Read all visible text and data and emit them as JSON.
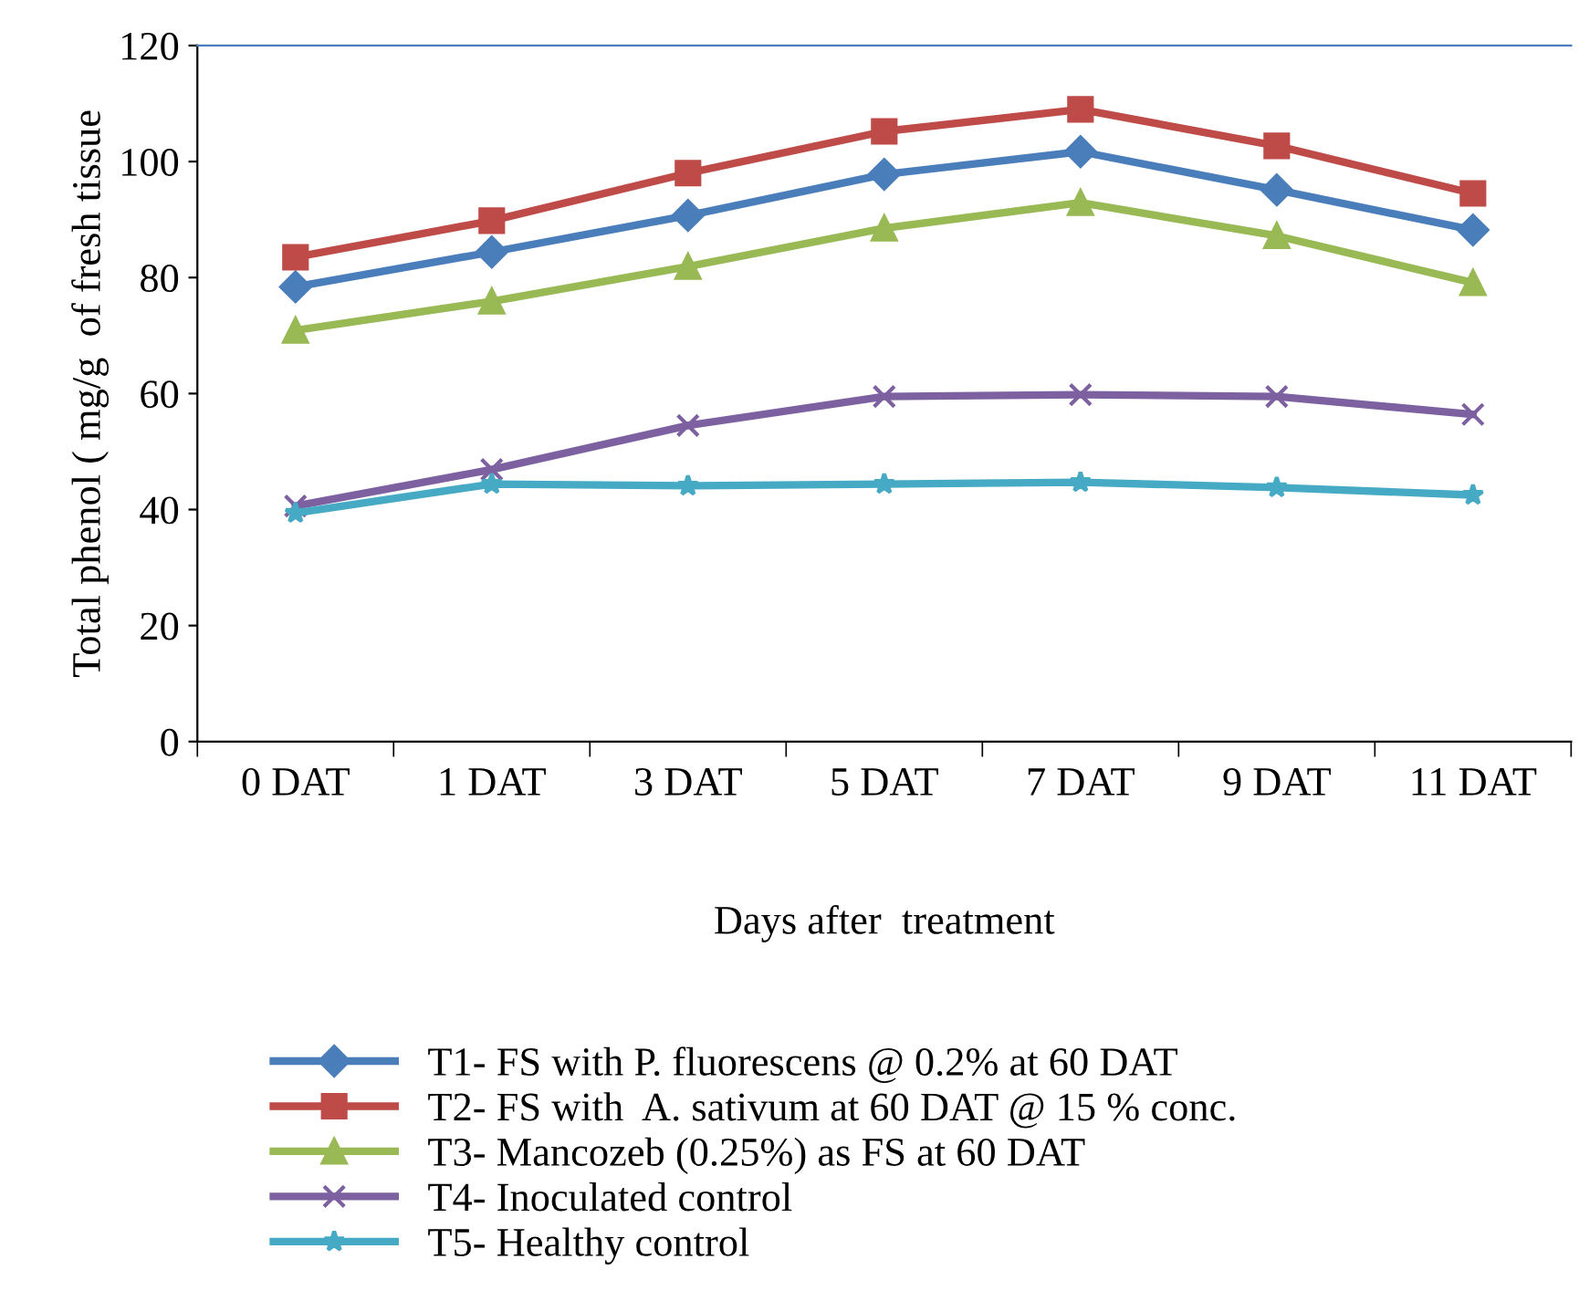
{
  "chart_data": {
    "type": "line",
    "xlabel": "Days after  treatment",
    "ylabel": "Total phenol ( mg/g  of fresh tissue",
    "categories": [
      "0 DAT",
      "1 DAT",
      "3 DAT",
      "5 DAT",
      "7 DAT",
      "9 DAT",
      "11 DAT"
    ],
    "series": [
      {
        "name": "T1- FS with P. fluorescens @ 0.2% at 60 DAT",
        "color": "#4a7ebb",
        "marker": "diamond",
        "values": [
          78.4,
          84.4,
          90.7,
          97.8,
          101.7,
          95.1,
          88.2
        ]
      },
      {
        "name": "T2- FS with  A. sativum at 60 DAT @ 15 % conc.",
        "color": "#be4b48",
        "marker": "square",
        "values": [
          83.5,
          89.8,
          98,
          105.2,
          109,
          102.7,
          94.5
        ]
      },
      {
        "name": "T3- Mancozeb (0.25%) as FS at 60 DAT",
        "color": "#98b954",
        "marker": "triangle",
        "values": [
          70.9,
          75.9,
          81.9,
          88.5,
          92.9,
          87.2,
          79.1
        ]
      },
      {
        "name": "T4- Inoculated control",
        "color": "#7d60a0",
        "marker": "cross",
        "values": [
          40.6,
          46.9,
          54.5,
          59.5,
          59.8,
          59.5,
          56.4
        ]
      },
      {
        "name": "T5- Healthy control",
        "color": "#46aac5",
        "marker": "star",
        "values": [
          39.4,
          44.4,
          44.1,
          44.4,
          44.7,
          43.8,
          42.5
        ]
      }
    ],
    "ylim": [
      0,
      120
    ],
    "yticks": [
      0,
      20,
      40,
      60,
      80,
      100,
      120
    ],
    "grid": false,
    "legend": "bottom",
    "line_style": "solid"
  }
}
